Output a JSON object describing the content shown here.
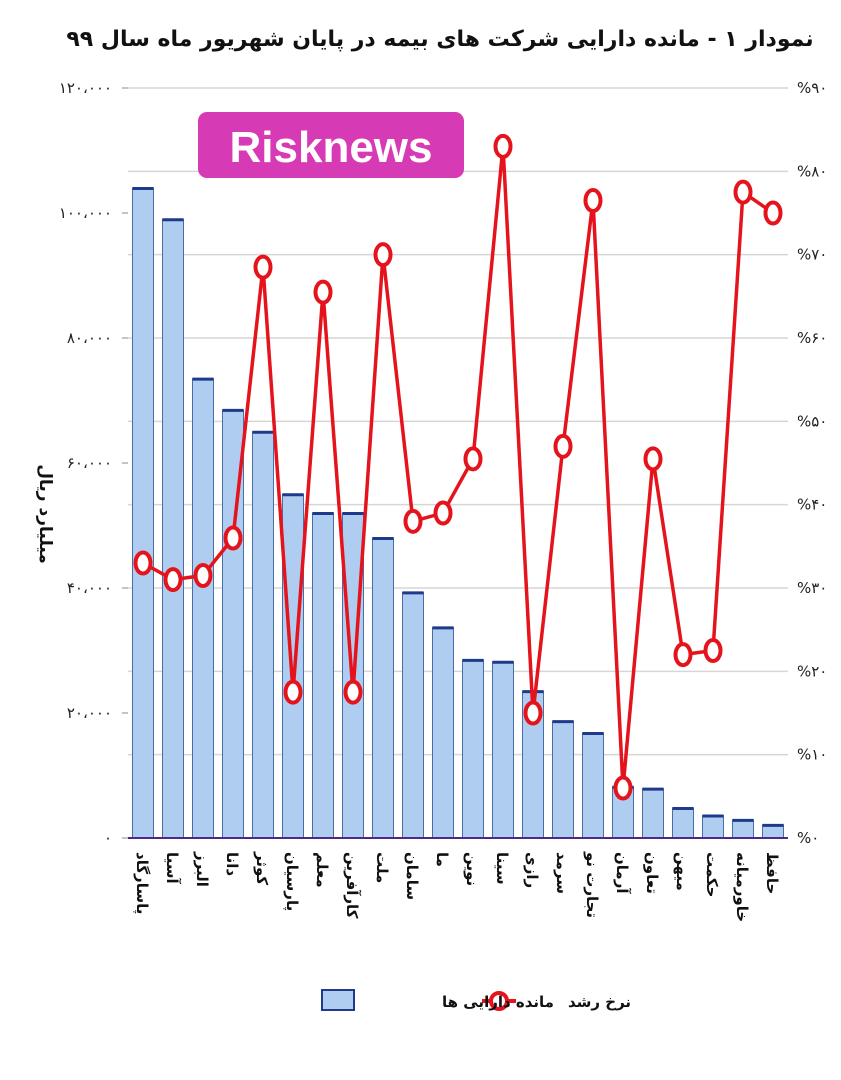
{
  "chart_data": {
    "type": "bar",
    "title": "نمودار ۱ - مانده دارایی شرکت های بیمه در پایان شهریور ماه سال ۹۹",
    "ylabel": "میلیارد ریال",
    "categories": [
      "پاسارگاد",
      "آسیا",
      "البرز",
      "دانا",
      "کوثر",
      "پارسیان",
      "معلم",
      "کارآفرین",
      "ملت",
      "سامان",
      "ما",
      "نوین",
      "سینا",
      "رازی",
      "سرمد",
      "تجارت نو",
      "آرمان",
      "تعاون",
      "میهن",
      "حکمت",
      "خاورمیانه",
      "حافظ"
    ],
    "ylim": [
      0,
      120000
    ],
    "yticks": [
      0,
      20000,
      40000,
      60000,
      80000,
      100000,
      120000
    ],
    "yticklabels": [
      "۰",
      "۲۰،۰۰۰",
      "۴۰،۰۰۰",
      "۶۰،۰۰۰",
      "۸۰،۰۰۰",
      "۱۰۰،۰۰۰",
      "۱۲۰،۰۰۰"
    ],
    "y2lim": [
      0,
      90
    ],
    "y2ticks": [
      0,
      10,
      20,
      30,
      40,
      50,
      60,
      70,
      80,
      90
    ],
    "y2ticklabels": [
      "%۰",
      "%۱۰",
      "%۲۰",
      "%۳۰",
      "%۴۰",
      "%۵۰",
      "%۶۰",
      "%۷۰",
      "%۸۰",
      "%۹۰"
    ],
    "grid": true,
    "series": [
      {
        "name": "مانده دارایی ها",
        "type": "bar",
        "axis": "left",
        "values": [
          104000,
          99000,
          73500,
          68500,
          65000,
          55000,
          52000,
          52000,
          48000,
          39300,
          33700,
          28500,
          28200,
          23500,
          18700,
          16800,
          8200,
          7900,
          4800,
          3600,
          2900,
          2100
        ]
      },
      {
        "name": "نرخ رشد",
        "type": "line",
        "axis": "right",
        "values": [
          33,
          31,
          31.5,
          36,
          68.5,
          17.5,
          65.5,
          17.5,
          70,
          38,
          39,
          45.5,
          83,
          15,
          47,
          76.5,
          6,
          45.5,
          22,
          22.5,
          77.5,
          75
        ]
      }
    ],
    "legend_position": "bottom",
    "colors": {
      "bar_fill": "#aecdf0",
      "bar_stroke": "#4a6fa5",
      "bar_cap": "#1f3a8a",
      "line": "#e5141c",
      "marker_fill": "#ffffff",
      "grid": "#d6d6d6"
    }
  },
  "watermark": {
    "text": "Risknews",
    "background": "#d63bb5"
  }
}
